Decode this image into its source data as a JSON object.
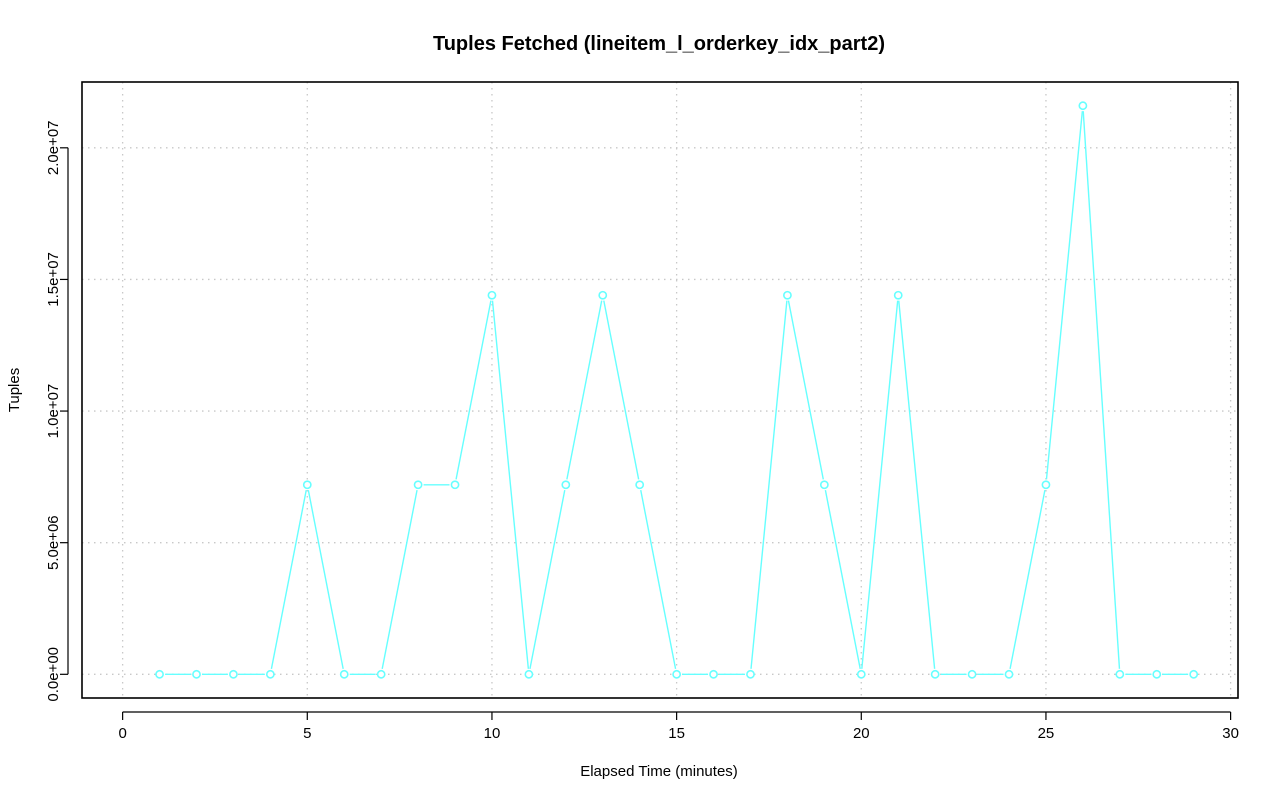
{
  "chart_data": {
    "type": "line",
    "title": "Tuples Fetched (lineitem_l_orderkey_idx_part2)",
    "xlabel": "Elapsed Time (minutes)",
    "ylabel": "Tuples",
    "xlim": [
      -1.1,
      30.2
    ],
    "ylim": [
      -900000,
      22500000
    ],
    "x_ticks": [
      0,
      5,
      10,
      15,
      20,
      25,
      30
    ],
    "x_tick_labels": [
      "0",
      "5",
      "10",
      "15",
      "20",
      "25",
      "30"
    ],
    "y_ticks": [
      0,
      5000000,
      10000000,
      15000000,
      20000000
    ],
    "y_tick_labels": [
      "0.0e+00",
      "5.0e+06",
      "1.0e+07",
      "1.5e+07",
      "2.0e+07"
    ],
    "grid": true,
    "series": [
      {
        "color": "#66ffff",
        "marker": "circle",
        "x": [
          1,
          2,
          3,
          4,
          5,
          6,
          7,
          8,
          9,
          10,
          11,
          12,
          13,
          14,
          15,
          16,
          17,
          18,
          19,
          20,
          21,
          22,
          23,
          24,
          25,
          26,
          27,
          28,
          29
        ],
        "y": [
          0,
          0,
          0,
          0,
          7200000,
          0,
          0,
          7200000,
          7200000,
          14400000,
          0,
          7200000,
          14400000,
          7200000,
          0,
          0,
          0,
          14400000,
          7200000,
          0,
          14400000,
          0,
          0,
          0,
          7200000,
          21600000,
          0,
          0,
          0
        ]
      }
    ]
  }
}
